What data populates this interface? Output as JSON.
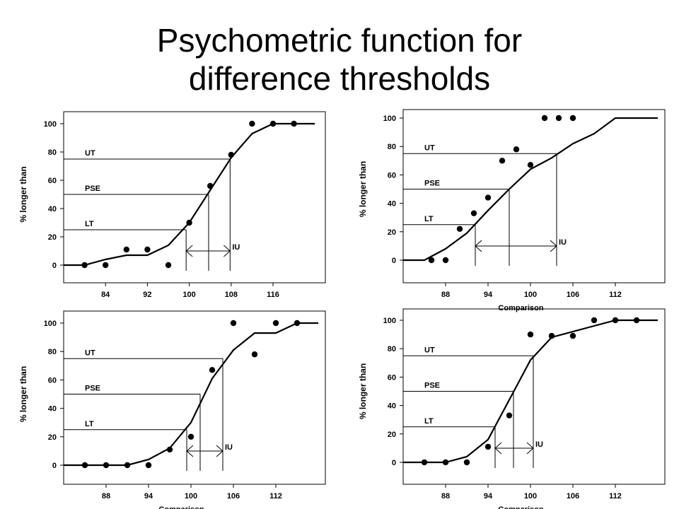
{
  "slide": {
    "title_line1": "Psychometric function for",
    "title_line2": "difference thresholds"
  },
  "colors": {
    "ink": "#000000",
    "background": "#ffffff"
  },
  "chart_data": [
    {
      "type": "line",
      "ylabel": "% longer than",
      "xlabel": "",
      "x_range": [
        76,
        126
      ],
      "yticks": [
        0,
        20,
        40,
        60,
        80,
        100
      ],
      "xtick_positions": [
        84,
        92,
        100,
        108,
        116
      ],
      "xtick_labels": [
        "84",
        "92",
        "100",
        "108",
        "116"
      ],
      "points": [
        [
          80,
          0
        ],
        [
          84,
          0
        ],
        [
          88,
          11
        ],
        [
          92,
          11
        ],
        [
          96,
          0
        ],
        [
          100,
          30
        ],
        [
          104,
          56
        ],
        [
          108,
          78
        ],
        [
          112,
          100
        ],
        [
          116,
          100
        ],
        [
          120,
          100
        ]
      ],
      "curve": [
        [
          76,
          0
        ],
        [
          80,
          0
        ],
        [
          84,
          4
        ],
        [
          88,
          7
        ],
        [
          92,
          7
        ],
        [
          96,
          14
        ],
        [
          100,
          30
        ],
        [
          104,
          53
        ],
        [
          108,
          76
        ],
        [
          112,
          93
        ],
        [
          116,
          100
        ],
        [
          120,
          100
        ],
        [
          124,
          100
        ]
      ],
      "markers": [
        {
          "label": "UT",
          "y": 75,
          "x": 107.8
        },
        {
          "label": "PSE",
          "y": 50,
          "x": 103.7
        },
        {
          "label": "LT",
          "y": 25,
          "x": 99.4
        }
      ],
      "interval_label": "IU"
    },
    {
      "type": "line",
      "ylabel": "% longer than",
      "xlabel": "Comparison",
      "x_range": [
        82,
        119
      ],
      "yticks": [
        0,
        20,
        40,
        60,
        80,
        100
      ],
      "xtick_positions": [
        88,
        94,
        100,
        106,
        112
      ],
      "xtick_labels": [
        "88",
        "94",
        "100",
        "106",
        "112"
      ],
      "points": [
        [
          86,
          0
        ],
        [
          88,
          0
        ],
        [
          90,
          22
        ],
        [
          92,
          33
        ],
        [
          94,
          44
        ],
        [
          96,
          70
        ],
        [
          98,
          78
        ],
        [
          100,
          67
        ],
        [
          102,
          100
        ],
        [
          104,
          100
        ],
        [
          106,
          100
        ]
      ],
      "curve": [
        [
          82,
          0
        ],
        [
          85,
          0
        ],
        [
          88,
          8
        ],
        [
          91,
          19
        ],
        [
          94,
          35
        ],
        [
          97,
          50
        ],
        [
          100,
          64
        ],
        [
          103,
          72
        ],
        [
          106,
          82
        ],
        [
          109,
          89
        ],
        [
          112,
          100
        ],
        [
          115,
          100
        ],
        [
          118,
          100
        ]
      ],
      "markers": [
        {
          "label": "UT",
          "y": 75,
          "x": 103.7
        },
        {
          "label": "PSE",
          "y": 50,
          "x": 97
        },
        {
          "label": "LT",
          "y": 25,
          "x": 92.2
        }
      ],
      "interval_label": "IU"
    },
    {
      "type": "line",
      "ylabel": "% longer than",
      "xlabel": "Comparison",
      "x_range": [
        82,
        119
      ],
      "yticks": [
        0,
        20,
        40,
        60,
        80,
        100
      ],
      "xtick_positions": [
        88,
        94,
        100,
        106,
        112
      ],
      "xtick_labels": [
        "88",
        "94",
        "100",
        "106",
        "112"
      ],
      "points": [
        [
          85,
          0
        ],
        [
          88,
          0
        ],
        [
          91,
          0
        ],
        [
          94,
          0
        ],
        [
          97,
          11
        ],
        [
          100,
          20
        ],
        [
          103,
          67
        ],
        [
          106,
          100
        ],
        [
          109,
          78
        ],
        [
          112,
          100
        ],
        [
          115,
          100
        ]
      ],
      "curve": [
        [
          82,
          0
        ],
        [
          85,
          0
        ],
        [
          88,
          0
        ],
        [
          91,
          0
        ],
        [
          94,
          4
        ],
        [
          97,
          12
        ],
        [
          100,
          30
        ],
        [
          103,
          61
        ],
        [
          106,
          81
        ],
        [
          109,
          93
        ],
        [
          112,
          93
        ],
        [
          115,
          100
        ],
        [
          118,
          100
        ]
      ],
      "markers": [
        {
          "label": "UT",
          "y": 75,
          "x": 104.5
        },
        {
          "label": "PSE",
          "y": 50,
          "x": 101.3
        },
        {
          "label": "LT",
          "y": 25,
          "x": 99.4
        }
      ],
      "interval_label": "IU"
    },
    {
      "type": "line",
      "ylabel": "% longer than",
      "xlabel": "Comparison",
      "x_range": [
        82,
        119
      ],
      "yticks": [
        0,
        20,
        40,
        60,
        80,
        100
      ],
      "xtick_positions": [
        88,
        94,
        100,
        106,
        112
      ],
      "xtick_labels": [
        "88",
        "94",
        "100",
        "106",
        "112"
      ],
      "points": [
        [
          85,
          0
        ],
        [
          88,
          0
        ],
        [
          91,
          0
        ],
        [
          94,
          11
        ],
        [
          97,
          33
        ],
        [
          100,
          90
        ],
        [
          103,
          89
        ],
        [
          106,
          89
        ],
        [
          109,
          100
        ],
        [
          112,
          100
        ],
        [
          115,
          100
        ]
      ],
      "curve": [
        [
          82,
          0
        ],
        [
          85,
          0
        ],
        [
          88,
          0
        ],
        [
          91,
          4
        ],
        [
          94,
          16
        ],
        [
          97,
          44
        ],
        [
          100,
          72
        ],
        [
          103,
          88
        ],
        [
          106,
          92
        ],
        [
          109,
          96
        ],
        [
          112,
          100
        ],
        [
          115,
          100
        ],
        [
          118,
          100
        ]
      ],
      "markers": [
        {
          "label": "UT",
          "y": 75,
          "x": 100.4
        },
        {
          "label": "PSE",
          "y": 50,
          "x": 97.6
        },
        {
          "label": "LT",
          "y": 25,
          "x": 95
        }
      ],
      "interval_label": "IU"
    }
  ]
}
